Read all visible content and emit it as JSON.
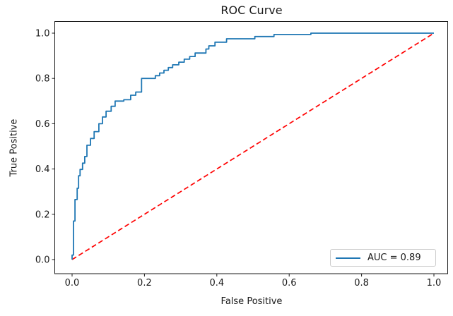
{
  "figure": {
    "background": "#ffffff",
    "text_color": "#1a1a1a",
    "frame_color": "#1a1a1a"
  },
  "chart_data": {
    "type": "line",
    "title": "ROC Curve",
    "xlabel": "False Positive",
    "ylabel": "True Positive",
    "grid": false,
    "xlim": [
      -0.05,
      1.05
    ],
    "ylim": [
      -0.06,
      1.05
    ],
    "ticks": {
      "x": [
        0.0,
        0.2,
        0.4,
        0.6,
        0.8,
        1.0
      ],
      "y": [
        0.0,
        0.2,
        0.4,
        0.6,
        0.8,
        1.0
      ]
    },
    "legend": {
      "position": "lower right",
      "label": "AUC = 0.89",
      "auc": 0.89
    },
    "series": [
      {
        "name": "roc-curve",
        "color": "#1f77b4",
        "style": "solid",
        "points": [
          [
            0.0,
            0.0
          ],
          [
            0.0,
            0.02
          ],
          [
            0.004,
            0.02
          ],
          [
            0.004,
            0.17
          ],
          [
            0.008,
            0.17
          ],
          [
            0.008,
            0.265
          ],
          [
            0.014,
            0.265
          ],
          [
            0.014,
            0.315
          ],
          [
            0.018,
            0.315
          ],
          [
            0.018,
            0.37
          ],
          [
            0.022,
            0.37
          ],
          [
            0.022,
            0.398
          ],
          [
            0.029,
            0.398
          ],
          [
            0.029,
            0.426
          ],
          [
            0.035,
            0.426
          ],
          [
            0.035,
            0.455
          ],
          [
            0.041,
            0.455
          ],
          [
            0.041,
            0.505
          ],
          [
            0.051,
            0.505
          ],
          [
            0.051,
            0.535
          ],
          [
            0.061,
            0.535
          ],
          [
            0.061,
            0.565
          ],
          [
            0.074,
            0.565
          ],
          [
            0.074,
            0.6
          ],
          [
            0.084,
            0.6
          ],
          [
            0.084,
            0.63
          ],
          [
            0.094,
            0.63
          ],
          [
            0.094,
            0.655
          ],
          [
            0.108,
            0.655
          ],
          [
            0.108,
            0.677
          ],
          [
            0.119,
            0.677
          ],
          [
            0.119,
            0.7
          ],
          [
            0.143,
            0.7
          ],
          [
            0.143,
            0.706
          ],
          [
            0.162,
            0.706
          ],
          [
            0.162,
            0.726
          ],
          [
            0.176,
            0.726
          ],
          [
            0.176,
            0.74
          ],
          [
            0.192,
            0.74
          ],
          [
            0.192,
            0.8
          ],
          [
            0.23,
            0.8
          ],
          [
            0.23,
            0.812
          ],
          [
            0.242,
            0.812
          ],
          [
            0.242,
            0.824
          ],
          [
            0.254,
            0.824
          ],
          [
            0.254,
            0.836
          ],
          [
            0.266,
            0.836
          ],
          [
            0.266,
            0.848
          ],
          [
            0.278,
            0.848
          ],
          [
            0.278,
            0.86
          ],
          [
            0.295,
            0.86
          ],
          [
            0.295,
            0.872
          ],
          [
            0.31,
            0.872
          ],
          [
            0.31,
            0.885
          ],
          [
            0.325,
            0.885
          ],
          [
            0.325,
            0.897
          ],
          [
            0.34,
            0.897
          ],
          [
            0.34,
            0.912
          ],
          [
            0.37,
            0.912
          ],
          [
            0.37,
            0.93
          ],
          [
            0.378,
            0.93
          ],
          [
            0.378,
            0.944
          ],
          [
            0.395,
            0.944
          ],
          [
            0.395,
            0.96
          ],
          [
            0.427,
            0.96
          ],
          [
            0.427,
            0.975
          ],
          [
            0.505,
            0.975
          ],
          [
            0.505,
            0.985
          ],
          [
            0.558,
            0.985
          ],
          [
            0.558,
            0.994
          ],
          [
            0.66,
            0.994
          ],
          [
            0.66,
            1.0
          ],
          [
            1.0,
            1.0
          ]
        ]
      },
      {
        "name": "chance-diagonal",
        "color": "#ff0000",
        "style": "dashed",
        "points": [
          [
            0.0,
            0.0
          ],
          [
            1.0,
            1.0
          ]
        ]
      }
    ]
  }
}
